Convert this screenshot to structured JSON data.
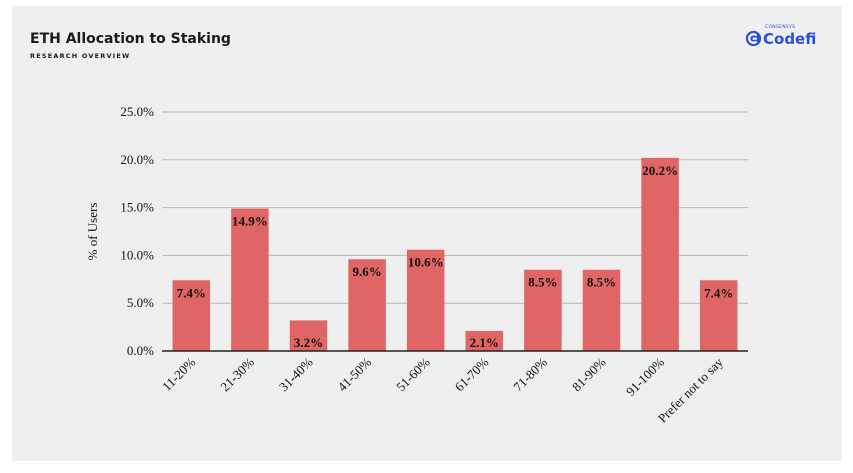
{
  "slide": {
    "title": "ETH Allocation to Staking",
    "subtitle": "RESEARCH OVERVIEW"
  },
  "logo": {
    "small_text": "CONSENSYS",
    "name": "Codefi",
    "color": "#2b50d6"
  },
  "chart_data": {
    "type": "bar",
    "categories": [
      "11-20%",
      "21-30%",
      "31-40%",
      "41-50%",
      "51-60%",
      "61-70%",
      "71-80%",
      "81-90%",
      "91-100%",
      "Prefer not to say"
    ],
    "values": [
      7.4,
      14.9,
      3.2,
      9.6,
      10.6,
      2.1,
      8.5,
      8.5,
      20.2,
      7.4
    ],
    "data_labels": [
      "7.4%",
      "14.9%",
      "3.2%",
      "9.6%",
      "10.6%",
      "2.1%",
      "8.5%",
      "8.5%",
      "20.2%",
      "7.4%"
    ],
    "yticks": [
      0,
      5,
      10,
      15,
      20,
      25
    ],
    "ytick_labels": [
      "0.0%",
      "5.0%",
      "10.0%",
      "15.0%",
      "20.0%",
      "25.0%"
    ],
    "ylabel": "% of Users",
    "xlabel": "",
    "ylim": [
      0,
      25
    ],
    "grid": true,
    "bar_color": "#e06666"
  }
}
